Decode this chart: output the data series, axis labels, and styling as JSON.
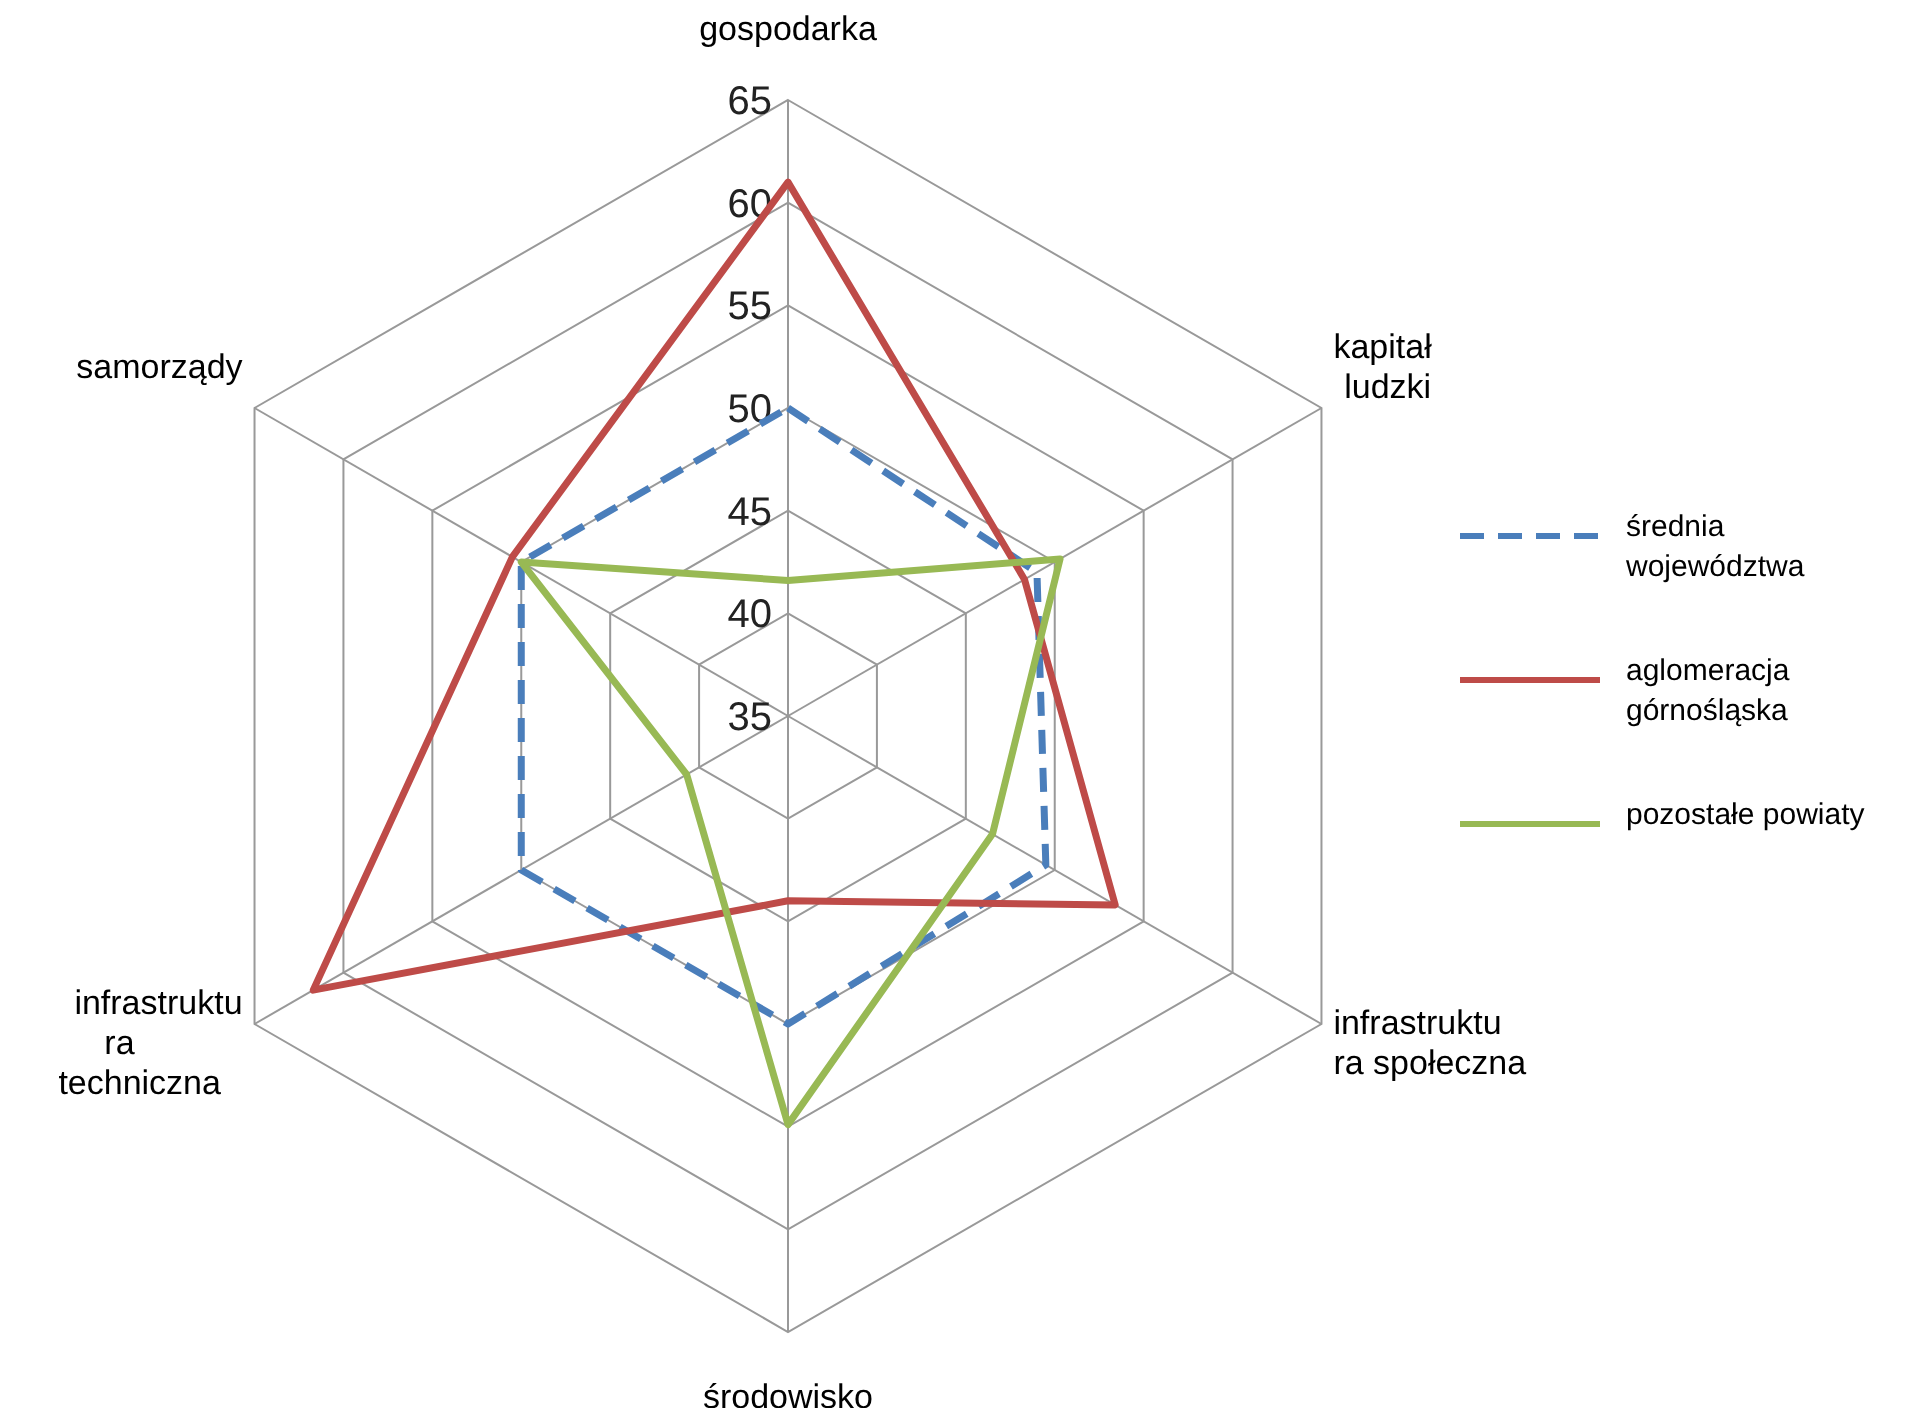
{
  "chart_data": {
    "type": "radar",
    "categories": [
      "gospodarka",
      "kapitał ludzki",
      "infrastruktura społeczna",
      "środowisko",
      "infrastruktura techniczna",
      "samorządy"
    ],
    "ylim": [
      35,
      65
    ],
    "yticks": [
      35,
      40,
      45,
      50,
      55,
      60,
      65
    ],
    "grid": true,
    "legend": "right",
    "series": [
      {
        "name": "średnia województwa",
        "color": "#4a7ebb",
        "line_style": "dashed",
        "values": [
          50,
          49,
          49.5,
          50,
          50,
          50
        ]
      },
      {
        "name": "aglomeracja górnośląska",
        "color": "#be4b48",
        "line_style": "solid",
        "values": [
          61,
          48.3,
          53.4,
          44,
          61.7,
          50.5
        ]
      },
      {
        "name": "pozostałe powiaty",
        "color": "#98b954",
        "line_style": "solid",
        "values": [
          41.6,
          50.3,
          46.5,
          54.9,
          40.7,
          50
        ]
      }
    ]
  }
}
